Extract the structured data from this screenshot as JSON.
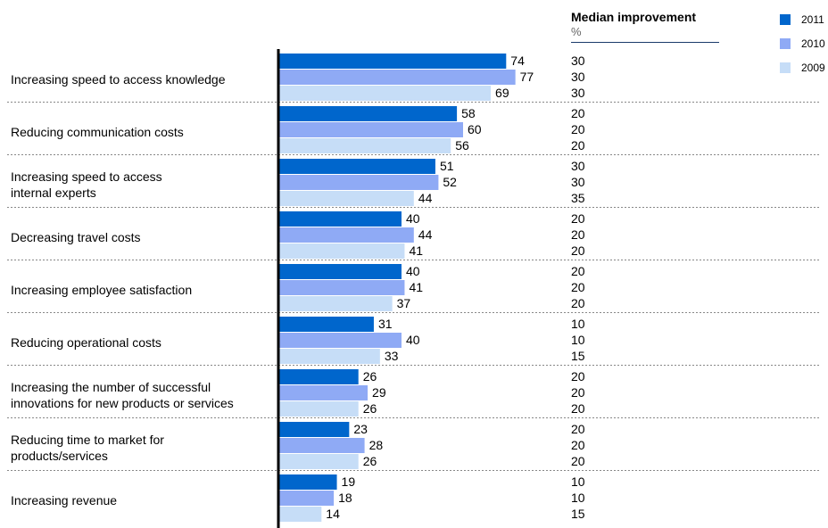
{
  "median_header": {
    "title": "Median improvement",
    "unit": "%"
  },
  "legend": [
    {
      "label": "2011",
      "color": "#0066cc"
    },
    {
      "label": "2010",
      "color": "#8faaf5"
    },
    {
      "label": "2009",
      "color": "#c6ddf7"
    }
  ],
  "chart_data": {
    "type": "bar",
    "orientation": "horizontal",
    "categories": [
      "Increasing speed to access knowledge",
      "Reducing communication costs",
      "Increasing speed to access internal experts",
      "Decreasing travel costs",
      "Increasing employee satisfaction",
      "Reducing operational costs",
      "Increasing the number of successful innovations for new products or services",
      "Reducing time to market for products/services",
      "Increasing revenue"
    ],
    "category_lines": [
      [
        "Increasing speed to access knowledge"
      ],
      [
        "Reducing communication costs"
      ],
      [
        "Increasing speed to access",
        "internal experts"
      ],
      [
        "Decreasing travel costs"
      ],
      [
        "Increasing employee satisfaction"
      ],
      [
        "Reducing operational costs"
      ],
      [
        "Increasing the number of successful",
        "innovations for new products or services"
      ],
      [
        "Reducing time to market for",
        "products/services"
      ],
      [
        "Increasing revenue"
      ]
    ],
    "series": [
      {
        "name": "2011",
        "color": "#0066cc",
        "values": [
          74,
          58,
          51,
          40,
          40,
          31,
          26,
          23,
          19
        ]
      },
      {
        "name": "2010",
        "color": "#8faaf5",
        "values": [
          77,
          60,
          52,
          44,
          41,
          40,
          29,
          28,
          18
        ]
      },
      {
        "name": "2009",
        "color": "#c6ddf7",
        "values": [
          69,
          56,
          44,
          41,
          37,
          33,
          26,
          26,
          14
        ]
      }
    ],
    "median_improvement": [
      [
        30,
        30,
        30
      ],
      [
        20,
        20,
        20
      ],
      [
        30,
        30,
        35
      ],
      [
        20,
        20,
        20
      ],
      [
        20,
        20,
        20
      ],
      [
        10,
        10,
        15
      ],
      [
        20,
        20,
        20
      ],
      [
        20,
        20,
        20
      ],
      [
        10,
        10,
        15
      ]
    ],
    "xlim": [
      0,
      100
    ],
    "grid": false,
    "legend_position": "top-right"
  }
}
